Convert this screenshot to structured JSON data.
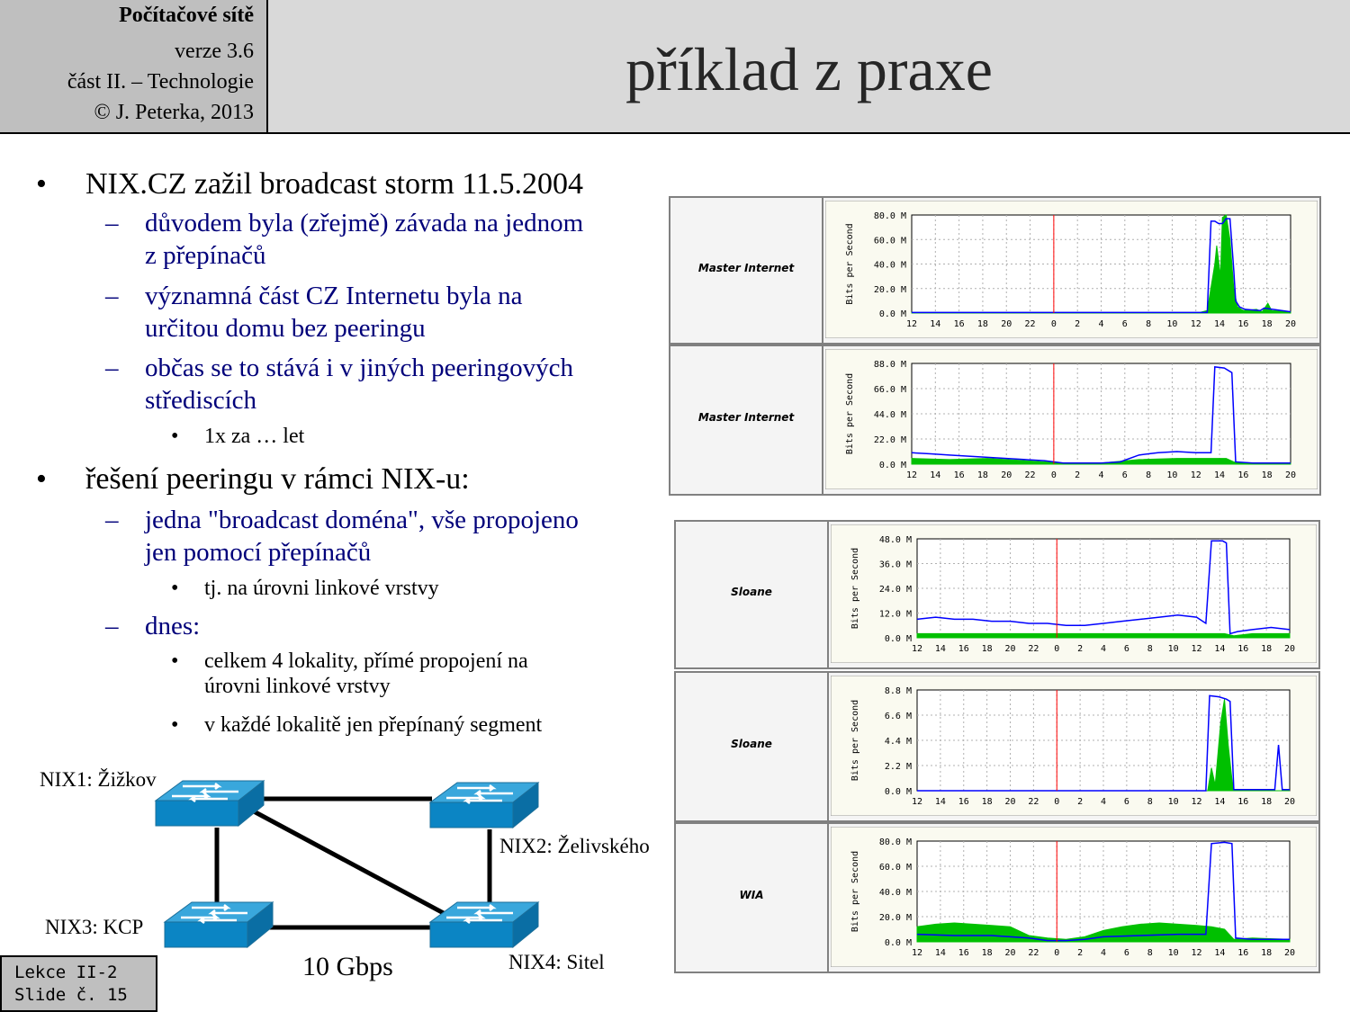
{
  "header": {
    "course": "Počítačové sítě",
    "version": "verze 3.6",
    "part": "část  II. – Technologie",
    "copyright": "© J. Peterka, 2013",
    "title": "příklad z praxe"
  },
  "bullets": [
    {
      "level": 1,
      "text": "NIX.CZ zažil broadcast storm 11.5.2004"
    },
    {
      "level": 2,
      "lines": [
        "důvodem byla (zřejmě) závada na jednom",
        "z přepínačů"
      ]
    },
    {
      "level": 2,
      "lines": [
        "významná část CZ Internetu byla na",
        "určitou domu bez peeringu"
      ]
    },
    {
      "level": 2,
      "lines": [
        "občas se to stává i v jiných peeringových",
        "střediscích"
      ]
    },
    {
      "level": 3,
      "lines": [
        "1x za … let"
      ]
    },
    {
      "level": 1,
      "text": "řešení peeringu v rámci NIX-u:"
    },
    {
      "level": 2,
      "lines": [
        "jedna \"broadcast doména\", vše propojeno",
        "jen pomocí přepínačů"
      ]
    },
    {
      "level": 3,
      "lines": [
        "tj. na úrovni linkové vrstvy"
      ]
    },
    {
      "level": 2,
      "lines": [
        "dnes:"
      ]
    },
    {
      "level": 3,
      "lines": [
        "celkem 4 lokality, přímé propojení na",
        "úrovni linkové vrstvy"
      ]
    },
    {
      "level": 3,
      "lines": [
        "v každé lokalitě jen přepínaný segment"
      ]
    }
  ],
  "diagram": {
    "nodes": [
      "NIX1: Žižkov",
      "NIX2: Želivského",
      "NIX3: KCP",
      "NIX4: Sitel"
    ],
    "link_label": "10 Gbps"
  },
  "slide_badge": [
    "Lekce II-2",
    "Slide č. 15"
  ],
  "colors": {
    "outbound": "#0000ff",
    "inbound": "#00c000",
    "marker": "#ff0000",
    "text_blue": "#00007a"
  },
  "chart_data": [
    {
      "type": "area",
      "label": "Master Internet",
      "ylabel": "Bits per Second",
      "yticks": [
        "80.0 M",
        "60.0 M",
        "40.0 M",
        "20.0 M",
        "0.0 M"
      ],
      "ymax": 80,
      "xticks": [
        "12",
        "14",
        "16",
        "18",
        "20",
        "22",
        "0",
        "2",
        "4",
        "6",
        "8",
        "10",
        "12",
        "14",
        "16",
        "18",
        "20"
      ],
      "marker_x": 6,
      "series": [
        {
          "name": "green",
          "fill": true,
          "points": [
            [
              0,
              0.5
            ],
            [
              6,
              0.5
            ],
            [
              15.2,
              0.5
            ],
            [
              15.6,
              2
            ],
            [
              16.0,
              40
            ],
            [
              16.1,
              55
            ],
            [
              16.3,
              30
            ],
            [
              16.4,
              78
            ],
            [
              16.6,
              80
            ],
            [
              16.8,
              60
            ],
            [
              17.0,
              20
            ],
            [
              17.2,
              5
            ],
            [
              17.5,
              2
            ],
            [
              18.2,
              3
            ],
            [
              18.5,
              1
            ],
            [
              18.8,
              8
            ],
            [
              19.0,
              2
            ],
            [
              20,
              1
            ]
          ]
        },
        {
          "name": "blue",
          "fill": false,
          "points": [
            [
              0,
              0.5
            ],
            [
              15.6,
              0.5
            ],
            [
              15.8,
              75
            ],
            [
              16.0,
              75
            ],
            [
              16.2,
              73
            ],
            [
              16.4,
              73
            ],
            [
              16.6,
              77
            ],
            [
              16.8,
              77
            ],
            [
              17.0,
              35
            ],
            [
              17.1,
              10
            ],
            [
              17.3,
              5
            ],
            [
              17.6,
              3
            ],
            [
              18.4,
              2
            ],
            [
              18.6,
              4
            ],
            [
              20,
              1
            ]
          ]
        }
      ]
    },
    {
      "type": "area",
      "label": "Master Internet",
      "ylabel": "Bits per Second",
      "yticks": [
        "88.0 M",
        "66.0 M",
        "44.0 M",
        "22.0 M",
        "0.0 M"
      ],
      "ymax": 88,
      "xticks": [
        "12",
        "14",
        "16",
        "18",
        "20",
        "22",
        "0",
        "2",
        "4",
        "6",
        "8",
        "10",
        "12",
        "14",
        "16",
        "18",
        "20"
      ],
      "marker_x": 6,
      "series": [
        {
          "name": "green",
          "fill": true,
          "points": [
            [
              0,
              5
            ],
            [
              2,
              4
            ],
            [
              4,
              5
            ],
            [
              6,
              3
            ],
            [
              8,
              1
            ],
            [
              10,
              1
            ],
            [
              12,
              4
            ],
            [
              14,
              5
            ],
            [
              15.8,
              5
            ],
            [
              16.2,
              5
            ],
            [
              16.6,
              5
            ],
            [
              17,
              2
            ],
            [
              18,
              1
            ],
            [
              20,
              1
            ]
          ]
        },
        {
          "name": "blue",
          "fill": false,
          "points": [
            [
              0,
              10
            ],
            [
              1,
              9
            ],
            [
              2,
              8
            ],
            [
              3,
              7
            ],
            [
              4,
              6
            ],
            [
              5,
              5
            ],
            [
              6,
              4
            ],
            [
              7,
              3
            ],
            [
              8,
              1
            ],
            [
              9,
              1
            ],
            [
              10,
              1
            ],
            [
              11,
              2
            ],
            [
              12,
              8
            ],
            [
              13,
              10
            ],
            [
              14,
              11
            ],
            [
              15,
              10
            ],
            [
              15.8,
              10
            ],
            [
              16.0,
              85
            ],
            [
              16.5,
              84
            ],
            [
              16.9,
              80
            ],
            [
              17.1,
              2
            ],
            [
              18,
              1
            ],
            [
              20,
              1
            ]
          ]
        }
      ]
    },
    {
      "type": "area",
      "label": "Sloane",
      "ylabel": "Bits per Second",
      "yticks": [
        "48.0 M",
        "36.0 M",
        "24.0 M",
        "12.0 M",
        "0.0 M"
      ],
      "ymax": 48,
      "xticks": [
        "12",
        "14",
        "16",
        "18",
        "20",
        "22",
        "0",
        "2",
        "4",
        "6",
        "8",
        "10",
        "12",
        "14",
        "16",
        "18",
        "20"
      ],
      "marker_x": 6,
      "series": [
        {
          "name": "green",
          "fill": true,
          "points": [
            [
              0,
              2
            ],
            [
              4,
              2
            ],
            [
              8,
              2
            ],
            [
              12,
              2
            ],
            [
              15.8,
              2
            ],
            [
              16.5,
              2
            ],
            [
              17,
              1
            ],
            [
              18,
              2
            ],
            [
              20,
              2
            ]
          ]
        },
        {
          "name": "blue",
          "fill": false,
          "points": [
            [
              0,
              9
            ],
            [
              1,
              10
            ],
            [
              2,
              9
            ],
            [
              3,
              9
            ],
            [
              4,
              8
            ],
            [
              5,
              8
            ],
            [
              6,
              7
            ],
            [
              7,
              7
            ],
            [
              8,
              6
            ],
            [
              9,
              6
            ],
            [
              10,
              7
            ],
            [
              11,
              8
            ],
            [
              12,
              9
            ],
            [
              13,
              10
            ],
            [
              14,
              11
            ],
            [
              15,
              10
            ],
            [
              15.5,
              7
            ],
            [
              15.8,
              47
            ],
            [
              16.4,
              47
            ],
            [
              16.6,
              46
            ],
            [
              16.8,
              2
            ],
            [
              17.2,
              3
            ],
            [
              18,
              4
            ],
            [
              19,
              5
            ],
            [
              20,
              4
            ]
          ]
        }
      ]
    },
    {
      "type": "area",
      "label": "Sloane",
      "ylabel": "Bits per Second",
      "yticks": [
        "8.8 M",
        "6.6 M",
        "4.4 M",
        "2.2 M",
        "0.0 M"
      ],
      "ymax": 8.8,
      "xticks": [
        "12",
        "14",
        "16",
        "18",
        "20",
        "22",
        "0",
        "2",
        "4",
        "6",
        "8",
        "10",
        "12",
        "14",
        "16",
        "18",
        "20"
      ],
      "marker_x": 6,
      "series": [
        {
          "name": "green",
          "fill": true,
          "points": [
            [
              0,
              0
            ],
            [
              15.6,
              0
            ],
            [
              15.8,
              2
            ],
            [
              16.0,
              0.5
            ],
            [
              16.3,
              6
            ],
            [
              16.5,
              8
            ],
            [
              16.7,
              4
            ],
            [
              16.9,
              1
            ],
            [
              17.0,
              0
            ],
            [
              20,
              0
            ]
          ]
        },
        {
          "name": "blue",
          "fill": false,
          "points": [
            [
              0,
              0
            ],
            [
              15.5,
              0
            ],
            [
              15.7,
              8.3
            ],
            [
              16.2,
              8.2
            ],
            [
              16.6,
              8.0
            ],
            [
              16.8,
              7.8
            ],
            [
              17.0,
              0.1
            ],
            [
              19.2,
              0.1
            ],
            [
              19.4,
              4.0
            ],
            [
              19.6,
              0.1
            ],
            [
              20,
              0.1
            ]
          ]
        }
      ]
    },
    {
      "type": "area",
      "label": "WIA",
      "ylabel": "Bits per Second",
      "yticks": [
        "80.0 M",
        "60.0 M",
        "40.0 M",
        "20.0 M",
        "0.0 M"
      ],
      "ymax": 80,
      "xticks": [
        "12",
        "14",
        "16",
        "18",
        "20",
        "22",
        "0",
        "2",
        "4",
        "6",
        "8",
        "10",
        "12",
        "14",
        "16",
        "18",
        "20"
      ],
      "marker_x": 6,
      "series": [
        {
          "name": "green",
          "fill": true,
          "points": [
            [
              0,
              12
            ],
            [
              1,
              14
            ],
            [
              2,
              15
            ],
            [
              3,
              14
            ],
            [
              4,
              13
            ],
            [
              5,
              12
            ],
            [
              6,
              5
            ],
            [
              7,
              3
            ],
            [
              8,
              2
            ],
            [
              9,
              4
            ],
            [
              10,
              9
            ],
            [
              11,
              12
            ],
            [
              12,
              14
            ],
            [
              13,
              15
            ],
            [
              14,
              14
            ],
            [
              15,
              13
            ],
            [
              15.8,
              12
            ],
            [
              16.5,
              10
            ],
            [
              17,
              2
            ],
            [
              18,
              3
            ],
            [
              20,
              2
            ]
          ]
        },
        {
          "name": "blue",
          "fill": false,
          "points": [
            [
              0,
              6
            ],
            [
              2,
              5
            ],
            [
              4,
              5
            ],
            [
              6,
              3
            ],
            [
              7,
              1
            ],
            [
              8,
              1
            ],
            [
              9,
              2
            ],
            [
              10,
              4
            ],
            [
              12,
              5
            ],
            [
              14,
              6
            ],
            [
              15.5,
              6
            ],
            [
              15.8,
              78
            ],
            [
              16.5,
              79
            ],
            [
              16.9,
              78
            ],
            [
              17.1,
              3
            ],
            [
              18,
              2
            ],
            [
              20,
              2
            ]
          ]
        }
      ]
    }
  ]
}
